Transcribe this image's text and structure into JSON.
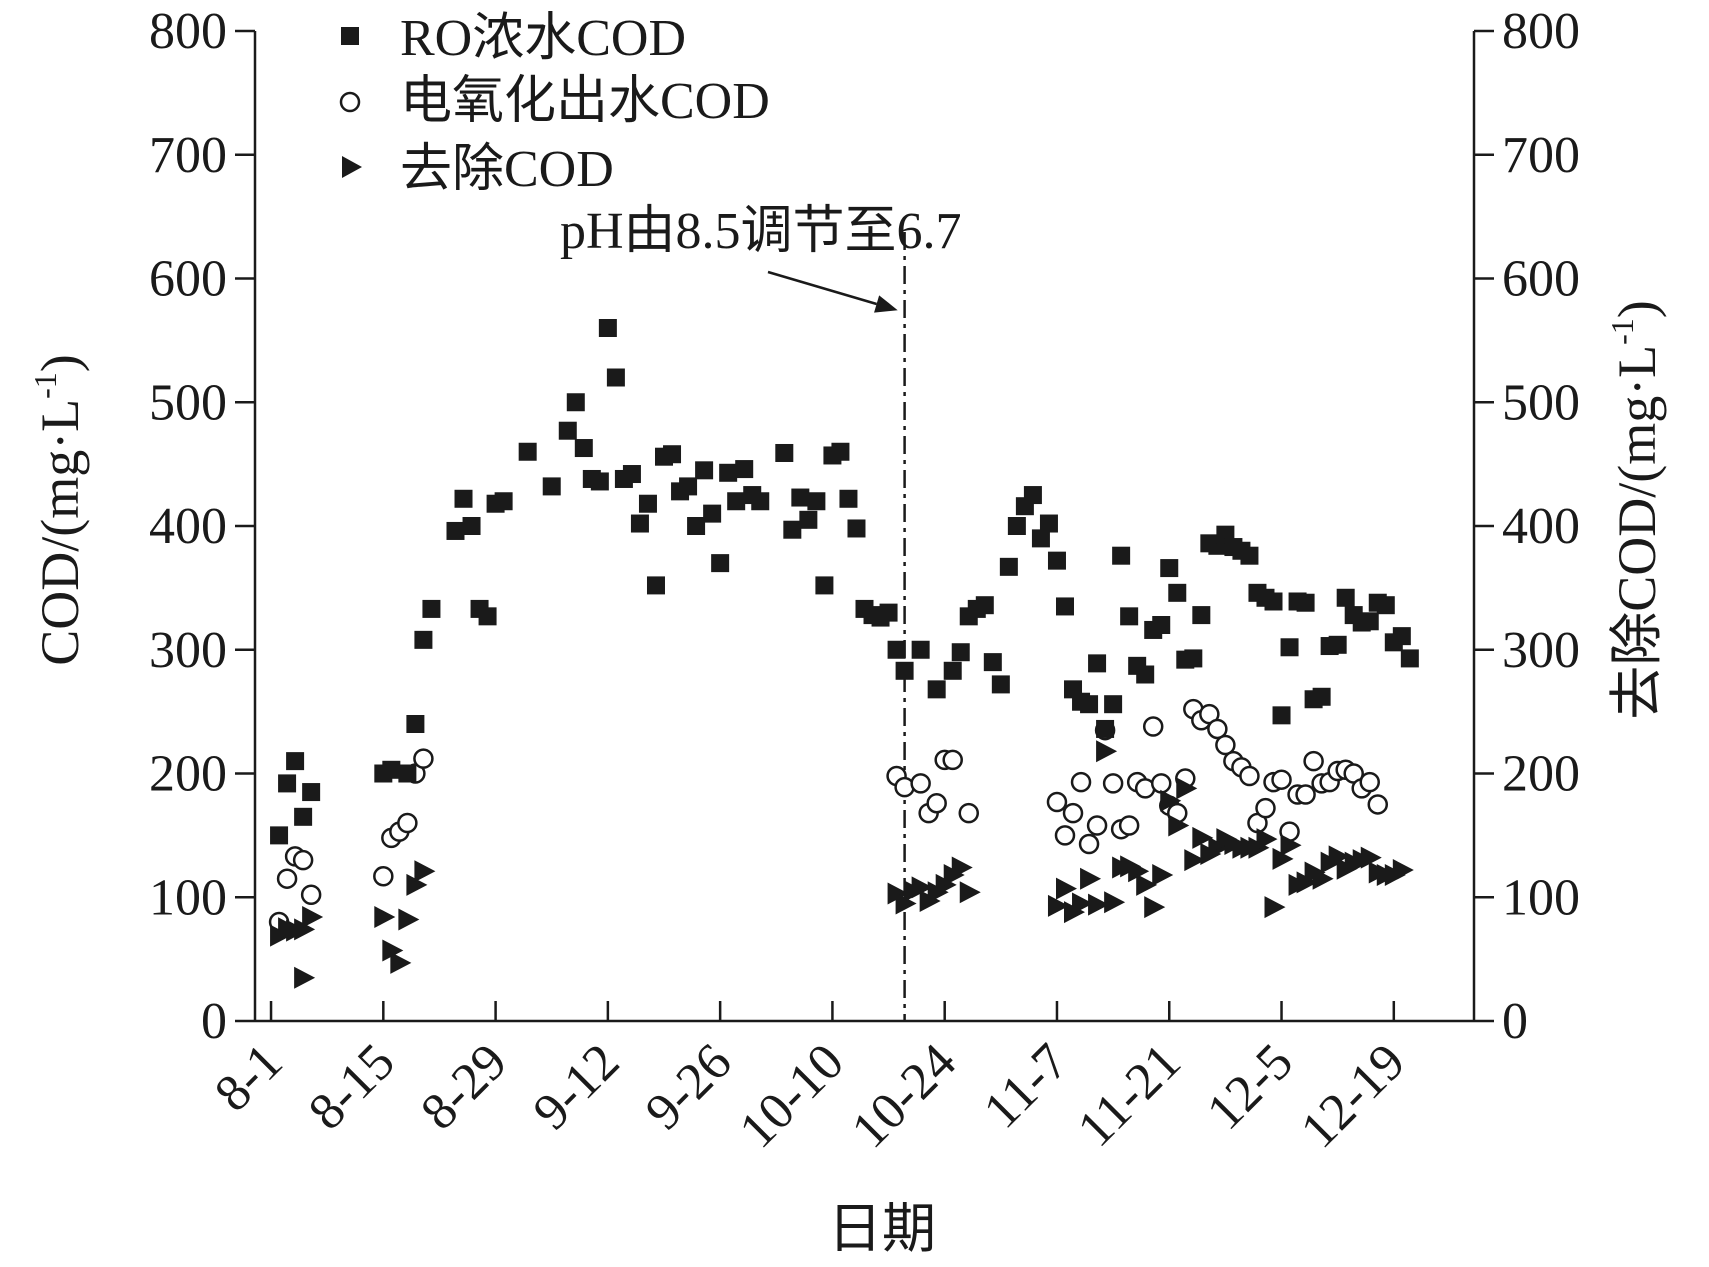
{
  "chart_data": {
    "type": "scatter",
    "xlabel": "日期",
    "ylabel": "COD/(mg·L",
    "ylabel_unit_sup": "-1",
    "ylabel_right": "去除COD/(mg·L",
    "ylabel_right_unit_sup": "-1",
    "x_ticks": [
      "8-1",
      "8-15",
      "8-29",
      "9-12",
      "9-26",
      "10-10",
      "10-24",
      "11-7",
      "11-21",
      "12-5",
      "12-19"
    ],
    "x_tick_days": [
      0,
      14,
      28,
      42,
      56,
      70,
      84,
      98,
      112,
      126,
      140
    ],
    "xlim": [
      -2,
      150
    ],
    "ylim": [
      0,
      800
    ],
    "y_ticks": [
      0,
      100,
      200,
      300,
      400,
      500,
      600,
      700,
      800
    ],
    "y_tick_labels": [
      "0",
      "100",
      "200",
      "300",
      "400",
      "500",
      "600",
      "700",
      "800"
    ],
    "y_right_tick_labels": [
      "0",
      "100",
      "200",
      "300",
      "400",
      "500",
      "600",
      "700",
      "800"
    ],
    "legend_position": "top-left",
    "annotation": {
      "text": "pH由8.5调节至6.7",
      "x_day": 79
    },
    "series": [
      {
        "name": "RO浓水COD",
        "marker": "square",
        "color": "#1a1a1a",
        "points": [
          [
            1,
            150
          ],
          [
            2,
            192
          ],
          [
            3,
            210
          ],
          [
            4,
            165
          ],
          [
            5,
            185
          ],
          [
            14,
            200
          ],
          [
            15,
            203
          ],
          [
            17,
            200
          ],
          [
            18,
            240
          ],
          [
            19,
            308
          ],
          [
            20,
            333
          ],
          [
            23,
            396
          ],
          [
            24,
            422
          ],
          [
            25,
            400
          ],
          [
            26,
            333
          ],
          [
            27,
            327
          ],
          [
            28,
            418
          ],
          [
            29,
            420
          ],
          [
            32,
            460
          ],
          [
            35,
            432
          ],
          [
            37,
            477
          ],
          [
            38,
            500
          ],
          [
            39,
            463
          ],
          [
            40,
            438
          ],
          [
            41,
            436
          ],
          [
            42,
            560
          ],
          [
            43,
            520
          ],
          [
            44,
            438
          ],
          [
            45,
            442
          ],
          [
            46,
            402
          ],
          [
            47,
            418
          ],
          [
            48,
            352
          ],
          [
            49,
            456
          ],
          [
            50,
            458
          ],
          [
            51,
            428
          ],
          [
            52,
            432
          ],
          [
            53,
            400
          ],
          [
            54,
            445
          ],
          [
            55,
            410
          ],
          [
            56,
            370
          ],
          [
            57,
            443
          ],
          [
            58,
            420
          ],
          [
            59,
            446
          ],
          [
            60,
            425
          ],
          [
            61,
            420
          ],
          [
            64,
            459
          ],
          [
            65,
            397
          ],
          [
            66,
            423
          ],
          [
            67,
            405
          ],
          [
            68,
            420
          ],
          [
            69,
            352
          ],
          [
            70,
            457
          ],
          [
            71,
            460
          ],
          [
            72,
            422
          ],
          [
            73,
            398
          ],
          [
            74,
            333
          ],
          [
            75,
            328
          ],
          [
            76,
            326
          ],
          [
            77,
            330
          ],
          [
            78,
            300
          ],
          [
            79,
            283
          ],
          [
            81,
            300
          ],
          [
            83,
            268
          ],
          [
            85,
            283
          ],
          [
            86,
            298
          ],
          [
            87,
            327
          ],
          [
            88,
            333
          ],
          [
            89,
            336
          ],
          [
            90,
            290
          ],
          [
            91,
            272
          ],
          [
            92,
            367
          ],
          [
            93,
            400
          ],
          [
            94,
            416
          ],
          [
            95,
            425
          ],
          [
            96,
            390
          ],
          [
            97,
            402
          ],
          [
            98,
            372
          ],
          [
            99,
            335
          ],
          [
            100,
            268
          ],
          [
            101,
            258
          ],
          [
            102,
            256
          ],
          [
            103,
            289
          ],
          [
            104,
            236
          ],
          [
            105,
            256
          ],
          [
            106,
            376
          ],
          [
            107,
            327
          ],
          [
            108,
            287
          ],
          [
            109,
            280
          ],
          [
            110,
            316
          ],
          [
            111,
            320
          ],
          [
            112,
            366
          ],
          [
            113,
            346
          ],
          [
            114,
            292
          ],
          [
            115,
            293
          ],
          [
            116,
            328
          ],
          [
            117,
            386
          ],
          [
            118,
            384
          ],
          [
            119,
            393
          ],
          [
            120,
            383
          ],
          [
            121,
            380
          ],
          [
            122,
            376
          ],
          [
            123,
            346
          ],
          [
            124,
            342
          ],
          [
            125,
            339
          ],
          [
            126,
            247
          ],
          [
            127,
            302
          ],
          [
            128,
            339
          ],
          [
            129,
            338
          ],
          [
            130,
            260
          ],
          [
            131,
            262
          ],
          [
            132,
            303
          ],
          [
            133,
            304
          ],
          [
            134,
            342
          ],
          [
            135,
            328
          ],
          [
            136,
            322
          ],
          [
            137,
            323
          ],
          [
            138,
            338
          ],
          [
            139,
            336
          ],
          [
            140,
            306
          ],
          [
            141,
            311
          ],
          [
            142,
            293
          ]
        ]
      },
      {
        "name": "电氧化出水COD",
        "marker": "circle-open",
        "color": "#1a1a1a",
        "points": [
          [
            1,
            80
          ],
          [
            2,
            115
          ],
          [
            3,
            133
          ],
          [
            4,
            130
          ],
          [
            5,
            102
          ],
          [
            14,
            117
          ],
          [
            15,
            148
          ],
          [
            16,
            153
          ],
          [
            17,
            160
          ],
          [
            18,
            200
          ],
          [
            19,
            212
          ],
          [
            78,
            198
          ],
          [
            79,
            189
          ],
          [
            81,
            192
          ],
          [
            82,
            168
          ],
          [
            83,
            176
          ],
          [
            84,
            211
          ],
          [
            85,
            211
          ],
          [
            87,
            168
          ],
          [
            98,
            177
          ],
          [
            99,
            150
          ],
          [
            100,
            168
          ],
          [
            101,
            193
          ],
          [
            102,
            143
          ],
          [
            103,
            158
          ],
          [
            104,
            235
          ],
          [
            105,
            192
          ],
          [
            106,
            155
          ],
          [
            107,
            158
          ],
          [
            108,
            193
          ],
          [
            109,
            188
          ],
          [
            110,
            238
          ],
          [
            111,
            192
          ],
          [
            112,
            174
          ],
          [
            113,
            168
          ],
          [
            114,
            196
          ],
          [
            115,
            252
          ],
          [
            116,
            243
          ],
          [
            117,
            248
          ],
          [
            118,
            236
          ],
          [
            119,
            223
          ],
          [
            120,
            210
          ],
          [
            121,
            205
          ],
          [
            122,
            198
          ],
          [
            123,
            160
          ],
          [
            124,
            172
          ],
          [
            125,
            193
          ],
          [
            126,
            195
          ],
          [
            127,
            153
          ],
          [
            128,
            183
          ],
          [
            129,
            183
          ],
          [
            130,
            210
          ],
          [
            131,
            192
          ],
          [
            132,
            193
          ],
          [
            133,
            202
          ],
          [
            134,
            203
          ],
          [
            135,
            200
          ],
          [
            136,
            188
          ],
          [
            137,
            193
          ],
          [
            138,
            175
          ]
        ]
      },
      {
        "name": "去除COD",
        "marker": "triangle-right",
        "color": "#1a1a1a",
        "points": [
          [
            1,
            69
          ],
          [
            2,
            75
          ],
          [
            3,
            73
          ],
          [
            4,
            74
          ],
          [
            4,
            35
          ],
          [
            5,
            84
          ],
          [
            14,
            84
          ],
          [
            15,
            57
          ],
          [
            16,
            47
          ],
          [
            17,
            82
          ],
          [
            18,
            110
          ],
          [
            19,
            121
          ],
          [
            78,
            103
          ],
          [
            79,
            95
          ],
          [
            80,
            105
          ],
          [
            81,
            108
          ],
          [
            82,
            97
          ],
          [
            83,
            104
          ],
          [
            84,
            110
          ],
          [
            85,
            118
          ],
          [
            86,
            124
          ],
          [
            87,
            104
          ],
          [
            98,
            93
          ],
          [
            99,
            107
          ],
          [
            100,
            88
          ],
          [
            101,
            95
          ],
          [
            102,
            115
          ],
          [
            103,
            94
          ],
          [
            104,
            218
          ],
          [
            105,
            96
          ],
          [
            106,
            124
          ],
          [
            107,
            125
          ],
          [
            108,
            121
          ],
          [
            109,
            110
          ],
          [
            110,
            92
          ],
          [
            111,
            118
          ],
          [
            112,
            178
          ],
          [
            113,
            158
          ],
          [
            114,
            188
          ],
          [
            115,
            130
          ],
          [
            116,
            148
          ],
          [
            117,
            135
          ],
          [
            118,
            140
          ],
          [
            119,
            147
          ],
          [
            120,
            143
          ],
          [
            121,
            140
          ],
          [
            122,
            140
          ],
          [
            123,
            140
          ],
          [
            124,
            147
          ],
          [
            125,
            92
          ],
          [
            126,
            131
          ],
          [
            127,
            142
          ],
          [
            128,
            110
          ],
          [
            129,
            112
          ],
          [
            130,
            120
          ],
          [
            131,
            115
          ],
          [
            132,
            128
          ],
          [
            133,
            133
          ],
          [
            134,
            123
          ],
          [
            135,
            128
          ],
          [
            136,
            130
          ],
          [
            137,
            132
          ],
          [
            138,
            120
          ],
          [
            139,
            118
          ],
          [
            140,
            118
          ],
          [
            141,
            122
          ]
        ]
      }
    ]
  }
}
